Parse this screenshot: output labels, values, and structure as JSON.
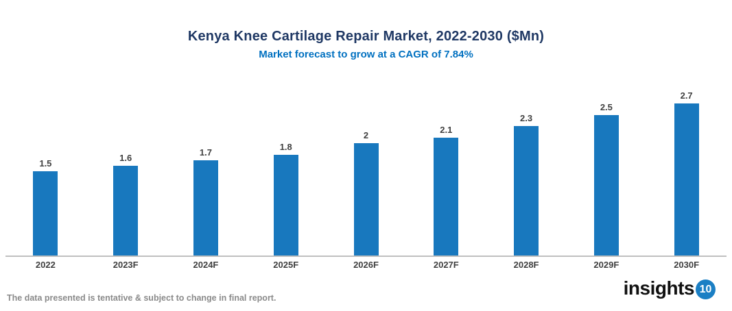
{
  "header": {
    "title": "Kenya Knee Cartilage Repair Market, 2022-2030 ($Mn)",
    "subtitle": "Market forecast to grow at a CAGR of 7.84%"
  },
  "chart_data": {
    "type": "bar",
    "title": "Kenya Knee Cartilage Repair Market, 2022-2030 ($Mn)",
    "subtitle": "Market forecast to grow at a CAGR of 7.84%",
    "categories": [
      "2022",
      "2023F",
      "2024F",
      "2025F",
      "2026F",
      "2027F",
      "2028F",
      "2029F",
      "2030F"
    ],
    "values": [
      1.5,
      1.6,
      1.7,
      1.8,
      2,
      2.1,
      2.3,
      2.5,
      2.7
    ],
    "value_labels": [
      "1.5",
      "1.6",
      "1.7",
      "1.8",
      "2",
      "2.1",
      "2.3",
      "2.5",
      "2.7"
    ],
    "xlabel": "",
    "ylabel": "",
    "ylim": [
      0,
      3
    ],
    "grid": false,
    "legend": false,
    "y_axis_visible": false,
    "bar_color": "#1878BE"
  },
  "footer": {
    "disclaimer": "The data presented is tentative & subject to change in final report.",
    "logo_text": "insights",
    "logo_badge": "10"
  },
  "colors": {
    "title": "#1F3864",
    "subtitle": "#0070C0",
    "bar": "#1878BE",
    "axis_line": "#BFBFBF",
    "data_label": "#3F3F3F",
    "footnote": "#8A8A8A",
    "logo_badge_bg": "#1B7FC4"
  }
}
